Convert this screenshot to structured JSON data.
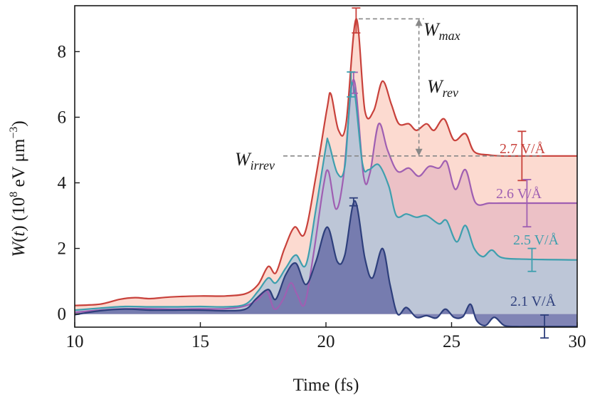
{
  "chart_data": {
    "type": "area",
    "xlabel": "Time (fs)",
    "ylabel_main": "W",
    "ylabel_var": "t",
    "ylabel_unit_prefix": "(10",
    "ylabel_unit_exp": "8",
    "ylabel_unit_mid": " eV μm",
    "ylabel_unit_exp2": "−3",
    "ylabel_unit_close": ")",
    "xlim": [
      10,
      30
    ],
    "ylim": [
      -0.4,
      9.4
    ],
    "xticks": [
      10,
      15,
      20,
      25,
      30
    ],
    "xtick_labels": [
      "10",
      "15",
      "20",
      "25",
      "30"
    ],
    "yticks": [
      0,
      2,
      4,
      6,
      8
    ],
    "ytick_labels": [
      "0",
      "2",
      "4",
      "6",
      "8"
    ],
    "grid": false,
    "series": [
      {
        "name": "2.7 V/Å",
        "line_color": "#c8413b",
        "fill_color": "#fbd3c8",
        "fill_opacity": 0.85,
        "label_color": "#c8413b",
        "end_value": 4.82,
        "error_bar": {
          "x": 27.8,
          "y": 4.82,
          "err": 0.75
        },
        "peak_error_bar": {
          "x": 21.2,
          "y": 8.95,
          "err": 0.38
        },
        "points": [
          [
            10,
            0.26
          ],
          [
            11,
            0.3
          ],
          [
            11.8,
            0.45
          ],
          [
            12.4,
            0.5
          ],
          [
            13,
            0.47
          ],
          [
            13.8,
            0.52
          ],
          [
            15,
            0.55
          ],
          [
            16,
            0.55
          ],
          [
            16.8,
            0.62
          ],
          [
            17.3,
            0.9
          ],
          [
            17.7,
            1.45
          ],
          [
            18.0,
            1.25
          ],
          [
            18.35,
            2.0
          ],
          [
            18.75,
            2.65
          ],
          [
            19.15,
            2.45
          ],
          [
            19.6,
            4.2
          ],
          [
            20.05,
            6.3
          ],
          [
            20.2,
            6.7
          ],
          [
            20.5,
            5.6
          ],
          [
            20.8,
            5.8
          ],
          [
            21.2,
            9.0
          ],
          [
            21.55,
            6.2
          ],
          [
            21.9,
            6.2
          ],
          [
            22.25,
            7.1
          ],
          [
            22.6,
            6.4
          ],
          [
            22.9,
            5.8
          ],
          [
            23.3,
            5.8
          ],
          [
            23.6,
            5.6
          ],
          [
            24.0,
            5.8
          ],
          [
            24.3,
            5.6
          ],
          [
            24.7,
            5.95
          ],
          [
            25.1,
            5.3
          ],
          [
            25.55,
            5.5
          ],
          [
            25.9,
            4.95
          ],
          [
            26.5,
            4.85
          ],
          [
            27,
            4.82
          ],
          [
            28,
            4.82
          ],
          [
            30,
            4.82
          ]
        ]
      },
      {
        "name": "2.6 V/Å",
        "line_color": "#9f5fb2",
        "fill_color": "#d49ab6",
        "fill_opacity": 0.4,
        "label_color": "#9f5fb2",
        "end_value": 3.38,
        "error_bar": {
          "x": 28.0,
          "y": 3.38,
          "err": 0.72
        },
        "peak_error_bar": {
          "x": 21.1,
          "y": 7.05,
          "err": 0.32
        },
        "points": [
          [
            10,
            0.05
          ],
          [
            11,
            0.12
          ],
          [
            12,
            0.16
          ],
          [
            13,
            0.16
          ],
          [
            14,
            0.15
          ],
          [
            15,
            0.16
          ],
          [
            16,
            0.16
          ],
          [
            16.8,
            0.25
          ],
          [
            17.3,
            0.45
          ],
          [
            17.65,
            0.7
          ],
          [
            17.95,
            0.15
          ],
          [
            18.3,
            0.45
          ],
          [
            18.6,
            0.95
          ],
          [
            18.85,
            0.6
          ],
          [
            19.15,
            0.3
          ],
          [
            19.5,
            1.8
          ],
          [
            19.9,
            3.9
          ],
          [
            20.1,
            4.35
          ],
          [
            20.4,
            3.2
          ],
          [
            20.7,
            4.2
          ],
          [
            21.1,
            7.15
          ],
          [
            21.5,
            4.2
          ],
          [
            21.75,
            4.3
          ],
          [
            22.1,
            5.8
          ],
          [
            22.45,
            5.0
          ],
          [
            22.85,
            4.35
          ],
          [
            23.3,
            4.45
          ],
          [
            23.7,
            4.2
          ],
          [
            24.1,
            4.5
          ],
          [
            24.5,
            4.45
          ],
          [
            24.8,
            4.65
          ],
          [
            25.15,
            3.8
          ],
          [
            25.55,
            4.4
          ],
          [
            25.95,
            3.4
          ],
          [
            26.5,
            3.38
          ],
          [
            27,
            3.38
          ],
          [
            28,
            3.38
          ],
          [
            30,
            3.38
          ]
        ]
      },
      {
        "name": "2.5 V/Å",
        "line_color": "#3e9fae",
        "fill_color": "#b8c7d8",
        "fill_opacity": 0.9,
        "label_color": "#3e9fae",
        "end_value": 1.65,
        "error_bar": {
          "x": 28.2,
          "y": 1.65,
          "err": 0.35
        },
        "peak_error_bar": {
          "x": 21.0,
          "y": 7.0,
          "err": 0.38
        },
        "points": [
          [
            10,
            0.12
          ],
          [
            11,
            0.18
          ],
          [
            12,
            0.23
          ],
          [
            13,
            0.22
          ],
          [
            14,
            0.22
          ],
          [
            15,
            0.23
          ],
          [
            16,
            0.22
          ],
          [
            16.8,
            0.3
          ],
          [
            17.3,
            0.7
          ],
          [
            17.7,
            1.1
          ],
          [
            18.0,
            0.95
          ],
          [
            18.4,
            1.4
          ],
          [
            18.8,
            1.8
          ],
          [
            19.2,
            1.5
          ],
          [
            19.6,
            3.2
          ],
          [
            20.0,
            5.1
          ],
          [
            20.1,
            5.25
          ],
          [
            20.45,
            4.3
          ],
          [
            20.75,
            4.5
          ],
          [
            21.05,
            7.05
          ],
          [
            21.45,
            4.6
          ],
          [
            21.7,
            4.4
          ],
          [
            22.1,
            4.55
          ],
          [
            22.5,
            3.9
          ],
          [
            22.8,
            3.0
          ],
          [
            23.2,
            3.05
          ],
          [
            23.6,
            2.95
          ],
          [
            24.0,
            3.0
          ],
          [
            24.5,
            2.75
          ],
          [
            24.8,
            2.85
          ],
          [
            25.2,
            2.2
          ],
          [
            25.55,
            2.7
          ],
          [
            25.9,
            2.0
          ],
          [
            26.25,
            1.75
          ],
          [
            26.6,
            1.95
          ],
          [
            27.0,
            1.72
          ],
          [
            28,
            1.67
          ],
          [
            30,
            1.65
          ]
        ]
      },
      {
        "name": "2.1 V/Å",
        "line_color": "#2e3f7c",
        "fill_color": "#6a6fa8",
        "fill_opacity": 0.85,
        "label_color": "#2e3f7c",
        "end_value": -0.38,
        "error_bar": {
          "x": 28.7,
          "y": -0.38,
          "err": 0.35
        },
        "peak_error_bar": {
          "x": 21.1,
          "y": 3.42,
          "err": 0.12
        },
        "points": [
          [
            10,
            -0.02
          ],
          [
            11,
            0.1
          ],
          [
            12,
            0.15
          ],
          [
            13,
            0.12
          ],
          [
            14,
            0.12
          ],
          [
            15,
            0.12
          ],
          [
            16,
            0.1
          ],
          [
            16.8,
            0.15
          ],
          [
            17.2,
            0.45
          ],
          [
            17.7,
            0.75
          ],
          [
            18.0,
            0.45
          ],
          [
            18.4,
            1.2
          ],
          [
            18.8,
            1.55
          ],
          [
            19.2,
            0.9
          ],
          [
            19.6,
            1.6
          ],
          [
            20.05,
            2.65
          ],
          [
            20.45,
            1.6
          ],
          [
            20.75,
            1.8
          ],
          [
            21.15,
            3.45
          ],
          [
            21.55,
            1.7
          ],
          [
            21.85,
            1.1
          ],
          [
            22.25,
            2.0
          ],
          [
            22.55,
            0.9
          ],
          [
            22.85,
            0.0
          ],
          [
            23.2,
            0.2
          ],
          [
            23.6,
            -0.1
          ],
          [
            24.0,
            -0.05
          ],
          [
            24.4,
            -0.12
          ],
          [
            24.75,
            0.15
          ],
          [
            25.1,
            -0.1
          ],
          [
            25.45,
            -0.08
          ],
          [
            25.75,
            0.3
          ],
          [
            26.0,
            -0.2
          ],
          [
            26.35,
            -0.35
          ],
          [
            26.7,
            -0.1
          ],
          [
            27.1,
            -0.35
          ],
          [
            27.6,
            -0.38
          ],
          [
            28,
            -0.38
          ],
          [
            30,
            -0.38
          ]
        ]
      }
    ],
    "annotations": {
      "w_max": {
        "main": "W",
        "sub": "max"
      },
      "w_rev": {
        "main": "W",
        "sub": "rev"
      },
      "w_irrev": {
        "main": "W",
        "sub": "irrev"
      },
      "ref_max_value": 9.0,
      "ref_irrev_value": 4.82,
      "ref_color": "#888888"
    }
  }
}
